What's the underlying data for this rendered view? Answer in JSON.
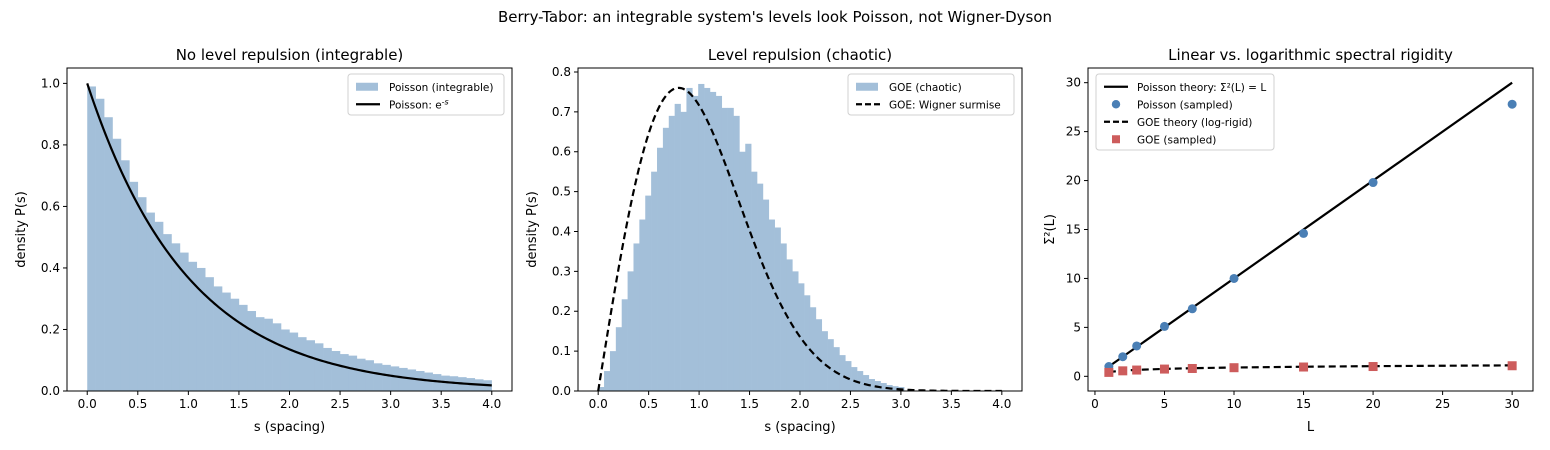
{
  "figure": {
    "suptitle": "Berry-Tabor: an integrable system's levels look Poisson, not Wigner-Dyson",
    "colors": {
      "hist": "#a3bfd9",
      "curve": "#000000",
      "poisson_marker": "#4a7fb5",
      "goe_marker": "#cd5c5c"
    }
  },
  "chart_data": [
    {
      "type": "bar",
      "title": "No level repulsion (integrable)",
      "xlabel": "s (spacing)",
      "ylabel": "density P(s)",
      "xlim": [
        -0.2,
        4.2
      ],
      "ylim": [
        0,
        1.05
      ],
      "xticks": [
        "0.0",
        "0.5",
        "1.0",
        "1.5",
        "2.0",
        "2.5",
        "3.0",
        "3.5",
        "4.0"
      ],
      "yticks": [
        "0.0",
        "0.2",
        "0.4",
        "0.6",
        "0.8",
        "1.0"
      ],
      "legend_position": "upper right",
      "legend": [
        "Poisson (integrable)",
        "Poisson: e^{-s}"
      ],
      "hist": {
        "name": "Poisson (integrable)",
        "bin_width": 0.0833,
        "start": 0.0,
        "values": [
          0.99,
          0.95,
          0.89,
          0.82,
          0.75,
          0.68,
          0.63,
          0.58,
          0.55,
          0.51,
          0.48,
          0.45,
          0.42,
          0.4,
          0.37,
          0.34,
          0.32,
          0.3,
          0.28,
          0.26,
          0.24,
          0.235,
          0.22,
          0.2,
          0.19,
          0.175,
          0.165,
          0.155,
          0.14,
          0.13,
          0.12,
          0.115,
          0.105,
          0.1,
          0.09,
          0.085,
          0.08,
          0.075,
          0.07,
          0.065,
          0.06,
          0.055,
          0.05,
          0.048,
          0.045,
          0.042,
          0.038,
          0.035
        ]
      },
      "curve": {
        "name": "Poisson: e^{-s}",
        "formula": "exp(-s)",
        "x_range": [
          0,
          4
        ]
      }
    },
    {
      "type": "bar",
      "title": "Level repulsion (chaotic)",
      "xlabel": "s (spacing)",
      "ylabel": "density P(s)",
      "xlim": [
        -0.2,
        4.2
      ],
      "ylim": [
        0,
        0.81
      ],
      "xticks": [
        "0.0",
        "0.5",
        "1.0",
        "1.5",
        "2.0",
        "2.5",
        "3.0",
        "3.5",
        "4.0"
      ],
      "yticks": [
        "0.0",
        "0.1",
        "0.2",
        "0.3",
        "0.4",
        "0.5",
        "0.6",
        "0.7",
        "0.8"
      ],
      "legend_position": "upper right",
      "legend": [
        "GOE (chaotic)",
        "GOE: Wigner surmise"
      ],
      "hist": {
        "name": "GOE (chaotic)",
        "bin_width": 0.0583,
        "start": 0.0,
        "values": [
          0.01,
          0.05,
          0.1,
          0.16,
          0.23,
          0.3,
          0.37,
          0.43,
          0.49,
          0.55,
          0.61,
          0.66,
          0.69,
          0.72,
          0.7,
          0.76,
          0.74,
          0.77,
          0.76,
          0.75,
          0.74,
          0.71,
          0.71,
          0.69,
          0.6,
          0.62,
          0.55,
          0.52,
          0.48,
          0.43,
          0.41,
          0.37,
          0.33,
          0.3,
          0.27,
          0.24,
          0.21,
          0.18,
          0.15,
          0.13,
          0.11,
          0.09,
          0.075,
          0.06,
          0.05,
          0.04,
          0.03,
          0.025,
          0.02,
          0.015,
          0.012,
          0.01
        ]
      },
      "curve": {
        "name": "GOE: Wigner surmise",
        "formula": "(pi/2) s exp(-pi s^2/4)",
        "x_range": [
          0,
          4
        ],
        "style": "dashed"
      }
    },
    {
      "type": "scatter",
      "title": "Linear vs. logarithmic spectral rigidity",
      "xlabel": "L",
      "ylabel": "Σ²(L)",
      "xlim": [
        -0.5,
        31.5
      ],
      "ylim": [
        -1.5,
        31.5
      ],
      "xticks": [
        "0",
        "5",
        "10",
        "15",
        "20",
        "25",
        "30"
      ],
      "yticks": [
        "0",
        "5",
        "10",
        "15",
        "20",
        "25",
        "30"
      ],
      "legend_position": "upper left",
      "legend": [
        "Poisson theory: Σ²(L) = L",
        "Poisson (sampled)",
        "GOE theory (log-rigid)",
        "GOE (sampled)"
      ],
      "series": [
        {
          "name": "Poisson theory: Σ²(L) = L",
          "kind": "line",
          "x": [
            1,
            30
          ],
          "y": [
            1,
            30
          ]
        },
        {
          "name": "Poisson (sampled)",
          "kind": "points",
          "marker": "circle",
          "x": [
            1,
            2,
            3,
            5,
            7,
            10,
            15,
            20,
            30
          ],
          "y": [
            1.0,
            2.0,
            3.1,
            5.1,
            6.9,
            10.0,
            14.6,
            19.8,
            27.8
          ]
        },
        {
          "name": "GOE theory (log-rigid)",
          "kind": "line",
          "style": "dashed",
          "x": [
            1,
            2,
            3,
            5,
            7,
            10,
            15,
            20,
            30
          ],
          "y": [
            0.44,
            0.58,
            0.66,
            0.76,
            0.83,
            0.9,
            0.98,
            1.04,
            1.12
          ]
        },
        {
          "name": "GOE (sampled)",
          "kind": "points",
          "marker": "square",
          "x": [
            1,
            2,
            3,
            5,
            7,
            10,
            15,
            20,
            30
          ],
          "y": [
            0.4,
            0.56,
            0.64,
            0.74,
            0.8,
            0.88,
            0.95,
            1.0,
            1.08
          ]
        }
      ]
    }
  ]
}
